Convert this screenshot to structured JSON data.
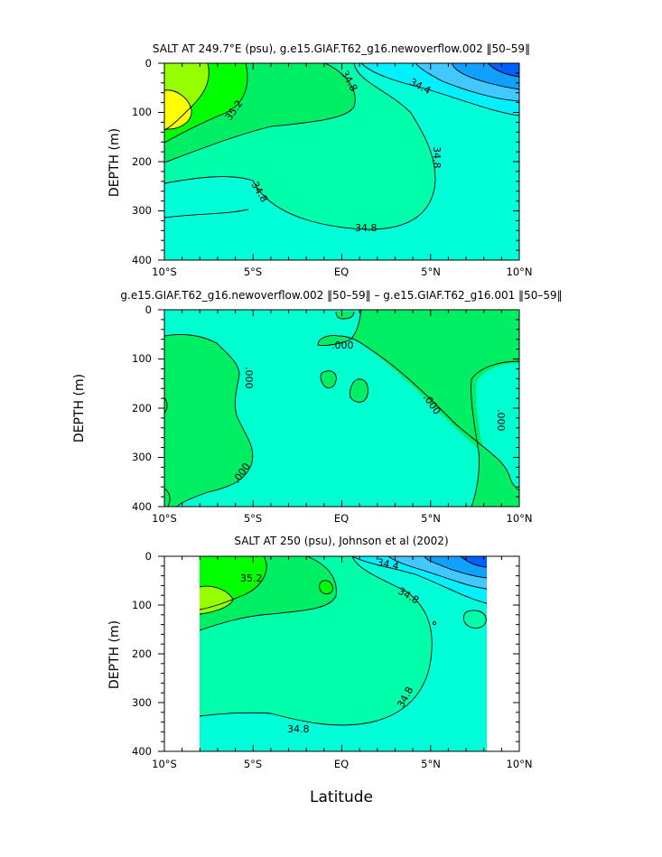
{
  "colors": {
    "c1": "#00ffd8",
    "c2": "#00ffaa",
    "c3": "#00ee64",
    "c4": "#00ff00",
    "c5": "#96ff00",
    "c6": "#ffff00",
    "fresh1": "#00f0ff",
    "fresh2": "#40c8ff",
    "fresh3": "#10a0ff",
    "fresh4": "#0060ff",
    "diff_pos": "#00ee64",
    "diff_neg": "#00ffd0"
  },
  "common_x_ticks": [
    "10°S",
    "5°S",
    "EQ",
    "5°N",
    "10°N"
  ],
  "common_y_ticks": [
    "0",
    "100",
    "200",
    "300",
    "400"
  ],
  "xlabel": "Latitude",
  "chart_data": [
    {
      "type": "heatmap",
      "title": "SALT AT 249.7°E (psu), g.e15.GIAF.T62_g16.newoverflow.002 ‖50–59‖",
      "ylabel": "DEPTH (m)",
      "xlim": [
        -10,
        10
      ],
      "ylim": [
        400,
        0
      ],
      "x_ticks": [
        "10°S",
        "5°S",
        "EQ",
        "5°N",
        "10°N"
      ],
      "y_ticks": [
        0,
        100,
        200,
        300,
        400
      ],
      "contour_labels": [
        "34.8",
        "34.4",
        "35.2",
        "34.8",
        "34.8",
        "34.8"
      ]
    },
    {
      "type": "heatmap",
      "title": "g.e15.GIAF.T62_g16.newoverflow.002 ‖50–59‖ – g.e15.GIAF.T62_g16.001 ‖50–59‖",
      "ylabel": "DEPTH (m)",
      "xlim": [
        -10,
        10
      ],
      "ylim": [
        400,
        0
      ],
      "x_ticks": [
        "10°S",
        "5°S",
        "EQ",
        "5°N",
        "10°N"
      ],
      "y_ticks": [
        0,
        100,
        200,
        300,
        400
      ],
      "contour_labels": [
        ".000",
        ".000",
        ".000",
        ".000",
        ".000"
      ]
    },
    {
      "type": "heatmap",
      "title": "SALT AT 250 (psu), Johnson et al (2002)",
      "ylabel": "DEPTH (m)",
      "xlabel": "Latitude",
      "xlim": [
        -10,
        10
      ],
      "ylim": [
        400,
        0
      ],
      "data_extent_lat": [
        -8,
        8.2
      ],
      "x_ticks": [
        "10°S",
        "5°S",
        "EQ",
        "5°N",
        "10°N"
      ],
      "y_ticks": [
        0,
        100,
        200,
        300,
        400
      ],
      "contour_labels": [
        "35.2",
        "34.4",
        "34.8",
        "34.8",
        "34.8"
      ]
    }
  ]
}
